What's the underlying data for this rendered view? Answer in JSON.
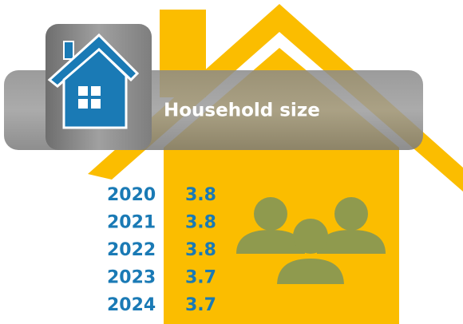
{
  "title": "Household size",
  "rows": [
    {
      "year": "2020",
      "value": 3.8
    },
    {
      "year": "2021",
      "value": 3.8
    },
    {
      "year": "2022",
      "value": 3.8
    },
    {
      "year": "2023",
      "value": 3.7
    },
    {
      "year": "2024",
      "value": 3.7
    }
  ]
}
